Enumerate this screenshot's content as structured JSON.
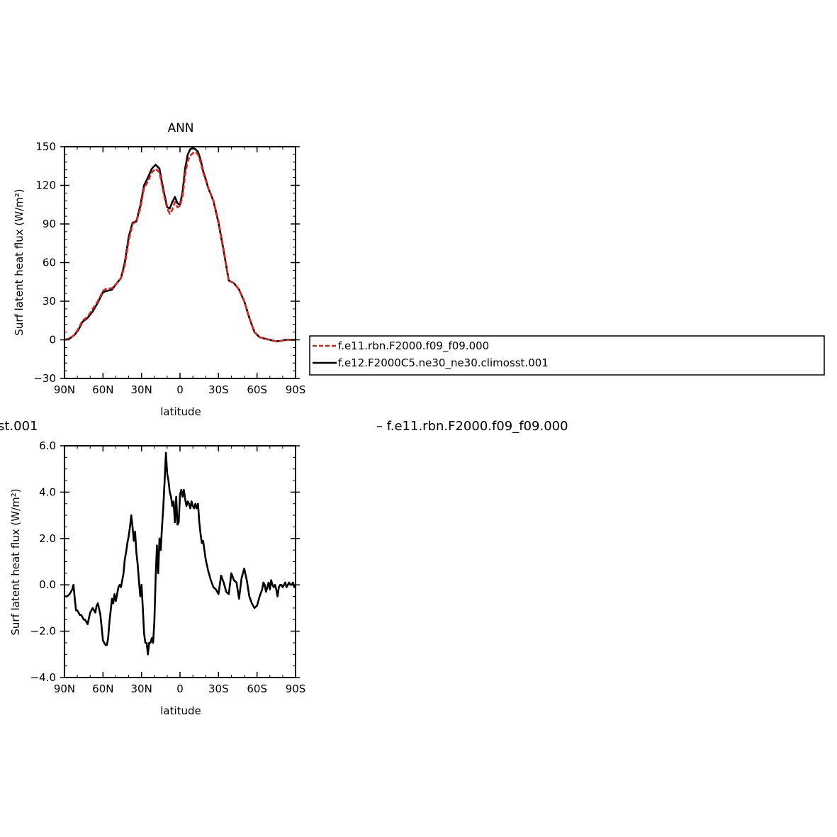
{
  "colors": {
    "model_a": "#e0201b",
    "model_b": "#000000"
  },
  "chart_data": [
    {
      "type": "line",
      "title": "ANN",
      "xlabel": "latitude",
      "ylabel": "Surf latent heat flux (W/m²)",
      "xlim": [
        90,
        -90
      ],
      "ylim": [
        -30,
        150
      ],
      "xticks": [
        90,
        60,
        30,
        0,
        -30,
        -60,
        -90
      ],
      "xtick_labels": [
        "90N",
        "60N",
        "30N",
        "0",
        "30S",
        "60S",
        "90S"
      ],
      "yticks": [
        -30,
        0,
        30,
        60,
        90,
        120,
        150
      ],
      "ytick_labels": [
        "−30",
        "0",
        "30",
        "60",
        "90",
        "120",
        "150"
      ],
      "grid": false,
      "legend_position": "right of plot",
      "series": [
        {
          "name": "f.e11.rbn.F2000.f09_f09.000",
          "color": "#e0201b",
          "dash": "dashed",
          "x": [
            90,
            86,
            82,
            79,
            76,
            72,
            68,
            64,
            60,
            57,
            53,
            50,
            46,
            43,
            40,
            37,
            34,
            31,
            28,
            25,
            22,
            19,
            16,
            14,
            12,
            10,
            8,
            6,
            4,
            2,
            0,
            -2,
            -4,
            -6,
            -8,
            -10,
            -12,
            -14,
            -16,
            -18,
            -20,
            -22,
            -26,
            -30,
            -34,
            -38,
            -42,
            -46,
            -50,
            -54,
            -58,
            -62,
            -66,
            -70,
            -74,
            -78,
            -82,
            -86,
            -90
          ],
          "y": [
            0,
            1,
            4,
            9,
            15,
            18,
            24,
            30,
            38,
            40,
            40,
            43,
            48,
            58,
            77,
            90,
            92,
            102,
            118,
            123,
            130,
            133,
            130,
            120,
            110,
            102,
            98,
            101,
            107,
            103,
            104,
            112,
            128,
            139,
            143,
            145,
            146,
            144,
            138,
            130,
            124,
            118,
            108,
            92,
            70,
            46,
            44,
            39,
            30,
            17,
            6,
            2,
            1,
            0,
            -1,
            -1,
            0,
            0,
            0
          ]
        },
        {
          "name": "f.e12.F2000C5.ne30_ne30.climosst.001",
          "color": "#000000",
          "dash": "solid",
          "x": [
            90,
            86,
            82,
            79,
            76,
            72,
            68,
            64,
            60,
            57,
            53,
            50,
            46,
            43,
            40,
            37,
            34,
            31,
            28,
            25,
            22,
            19,
            16,
            14,
            12,
            10,
            8,
            6,
            4,
            2,
            0,
            -2,
            -4,
            -6,
            -8,
            -10,
            -12,
            -14,
            -16,
            -18,
            -20,
            -22,
            -26,
            -30,
            -34,
            -38,
            -42,
            -46,
            -50,
            -54,
            -58,
            -62,
            -66,
            -70,
            -74,
            -78,
            -82,
            -86,
            -90
          ],
          "y": [
            0,
            1,
            4,
            8,
            14,
            17,
            22,
            29,
            37,
            38,
            39,
            43,
            48,
            60,
            80,
            91,
            92,
            104,
            120,
            126,
            133,
            136,
            133,
            122,
            112,
            103,
            102,
            107,
            111,
            106,
            105,
            115,
            133,
            144,
            148,
            149,
            148,
            146,
            140,
            131,
            125,
            118,
            108,
            91,
            69,
            46,
            44,
            39,
            30,
            17,
            6,
            2,
            1,
            0,
            -1,
            -1,
            0,
            0,
            0
          ]
        }
      ]
    },
    {
      "type": "line",
      "title": "",
      "xlabel": "latitude",
      "ylabel": "Surf latent heat flux (W/m²)",
      "xlim": [
        90,
        -90
      ],
      "ylim": [
        -4,
        6
      ],
      "xticks": [
        90,
        60,
        30,
        0,
        -30,
        -60,
        -90
      ],
      "xtick_labels": [
        "90N",
        "60N",
        "30N",
        "0",
        "30S",
        "60S",
        "90S"
      ],
      "yticks": [
        -4,
        -2,
        0,
        2,
        4,
        6
      ],
      "ytick_labels": [
        "−4.0",
        "−2.0",
        "0.0",
        "2.0",
        "4.0",
        "6.0"
      ],
      "grid": false,
      "header_left": "st.001",
      "header_right": "– f.e11.rbn.F2000.f09_f09.000",
      "series": [
        {
          "name": "",
          "color": "#000000",
          "dash": "solid",
          "x": [
            90,
            88,
            86,
            85,
            84,
            83,
            82,
            81,
            80,
            79,
            78,
            77,
            76,
            75,
            74,
            73,
            72,
            70,
            68,
            67,
            66,
            65,
            64,
            62,
            60,
            59,
            58,
            57,
            56,
            55,
            54,
            53,
            52,
            51,
            50,
            49,
            48,
            47,
            46,
            45,
            44,
            43,
            42,
            41,
            40,
            39,
            38,
            37,
            36,
            35,
            34,
            33,
            32,
            31,
            30,
            29,
            28,
            27,
            26,
            25,
            24,
            23,
            22,
            21,
            20,
            19,
            18,
            17,
            16,
            15,
            14,
            13,
            12,
            11,
            10,
            9,
            8,
            7,
            6,
            5,
            4,
            3,
            2,
            1,
            0,
            -1,
            -2,
            -3,
            -4,
            -5,
            -6,
            -7,
            -8,
            -9,
            -10,
            -11,
            -12,
            -13,
            -14,
            -15,
            -16,
            -17,
            -18,
            -20,
            -22,
            -24,
            -26,
            -28,
            -30,
            -32,
            -34,
            -36,
            -38,
            -40,
            -42,
            -44,
            -46,
            -48,
            -50,
            -52,
            -54,
            -56,
            -58,
            -60,
            -62,
            -64,
            -65,
            -66,
            -67,
            -68,
            -69,
            -70,
            -71,
            -72,
            -73,
            -74,
            -75,
            -76,
            -77,
            -78,
            -79,
            -80,
            -81,
            -82,
            -83,
            -84,
            -85,
            -86,
            -87,
            -88,
            -89,
            -90
          ],
          "y": [
            -0.5,
            -0.5,
            -0.4,
            -0.3,
            -0.2,
            0.0,
            -0.6,
            -1.1,
            -1.1,
            -1.2,
            -1.3,
            -1.3,
            -1.4,
            -1.5,
            -1.5,
            -1.6,
            -1.7,
            -1.2,
            -1.0,
            -1.1,
            -1.2,
            -0.9,
            -0.8,
            -1.3,
            -2.4,
            -2.5,
            -2.6,
            -2.6,
            -2.3,
            -1.6,
            -1.1,
            -0.6,
            -0.8,
            -0.4,
            -0.7,
            -0.4,
            -0.1,
            0.0,
            -0.1,
            0.2,
            0.5,
            1.1,
            1.4,
            1.8,
            2.1,
            2.5,
            3.0,
            2.5,
            1.9,
            2.3,
            1.4,
            0.9,
            0.2,
            -0.5,
            0.0,
            -1.0,
            -2.1,
            -2.5,
            -2.5,
            -3.0,
            -2.5,
            -2.5,
            -2.3,
            -2.5,
            -1.6,
            0.3,
            1.7,
            0.5,
            2.0,
            1.5,
            2.5,
            3.4,
            4.5,
            5.7,
            4.8,
            4.5,
            4.0,
            3.8,
            3.4,
            3.6,
            2.7,
            3.8,
            2.6,
            2.7,
            3.9,
            4.1,
            3.8,
            4.1,
            3.7,
            3.4,
            3.6,
            3.5,
            3.3,
            3.6,
            3.4,
            3.3,
            3.5,
            3.3,
            3.5,
            2.7,
            2.2,
            1.8,
            1.9,
            1.1,
            0.6,
            0.2,
            -0.1,
            -0.2,
            -0.4,
            0.4,
            0.1,
            -0.3,
            -0.4,
            0.5,
            0.2,
            0.1,
            -0.6,
            0.3,
            0.7,
            0.2,
            -0.5,
            -0.8,
            -1.0,
            -0.9,
            -0.5,
            -0.2,
            0.1,
            0.0,
            -0.3,
            -0.1,
            0.1,
            -0.2,
            0.2,
            0.0,
            -0.1,
            0.0,
            -0.2,
            -0.5,
            -0.1,
            0.0,
            0.0,
            -0.1,
            0.0,
            0.1,
            -0.1,
            0.0,
            0.1,
            0.0,
            0.0,
            0.1,
            -0.1,
            0.0
          ]
        }
      ]
    }
  ]
}
